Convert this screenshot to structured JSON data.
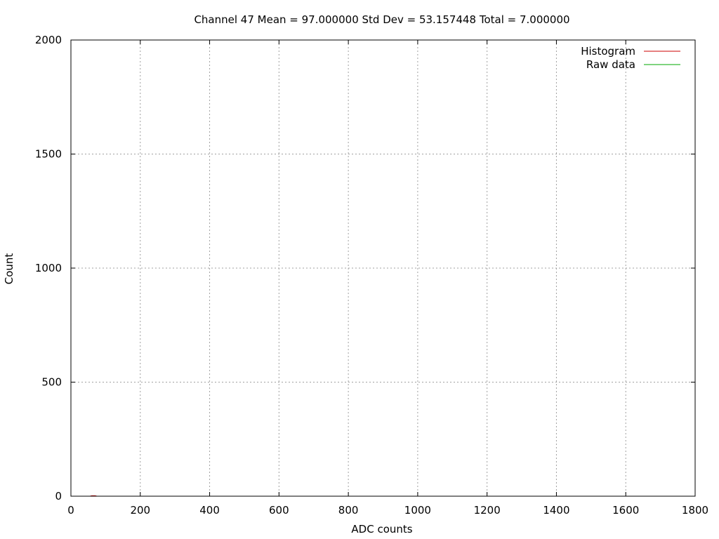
{
  "chart_data": {
    "type": "line",
    "title": "Channel 47  Mean = 97.000000  Std Dev = 53.157448  Total = 7.000000",
    "xlabel": "ADC counts",
    "ylabel": "Count",
    "xlim": [
      0,
      1800
    ],
    "ylim": [
      0,
      2000
    ],
    "xticks": [
      0,
      200,
      400,
      600,
      800,
      1000,
      1200,
      1400,
      1600,
      1800
    ],
    "yticks": [
      0,
      500,
      1000,
      1500,
      2000
    ],
    "grid": true,
    "legend_position": "top-right",
    "series": [
      {
        "name": "Histogram",
        "color": "#cc0000",
        "x": [
          55,
          60,
          65,
          70,
          75
        ],
        "y": [
          0,
          2,
          2,
          2,
          0
        ]
      },
      {
        "name": "Raw data",
        "color": "#00aa00",
        "x": [],
        "y": []
      }
    ]
  }
}
